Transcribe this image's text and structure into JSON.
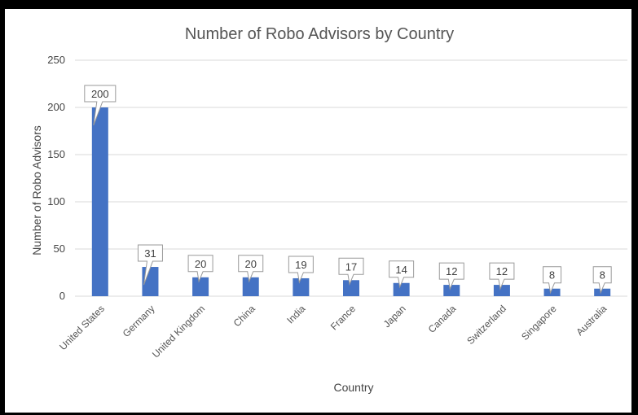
{
  "chart_data": {
    "type": "bar",
    "title": "Number of Robo Advisors by Country",
    "xlabel": "Country",
    "ylabel": "Number of Robo Advisors",
    "categories": [
      "United States",
      "Germany",
      "United Kingdom",
      "China",
      "India",
      "France",
      "Japan",
      "Canada",
      "Switzerland",
      "Singapore",
      "Australia"
    ],
    "values": [
      200,
      31,
      20,
      20,
      19,
      17,
      14,
      12,
      12,
      8,
      8
    ],
    "ylim": [
      0,
      250
    ],
    "yticks": [
      0,
      50,
      100,
      150,
      200,
      250
    ],
    "grid": true,
    "legend": "none",
    "colors": {
      "bar": "#4472c4",
      "grid": "#d9d9d9",
      "frame": "#000000"
    }
  }
}
